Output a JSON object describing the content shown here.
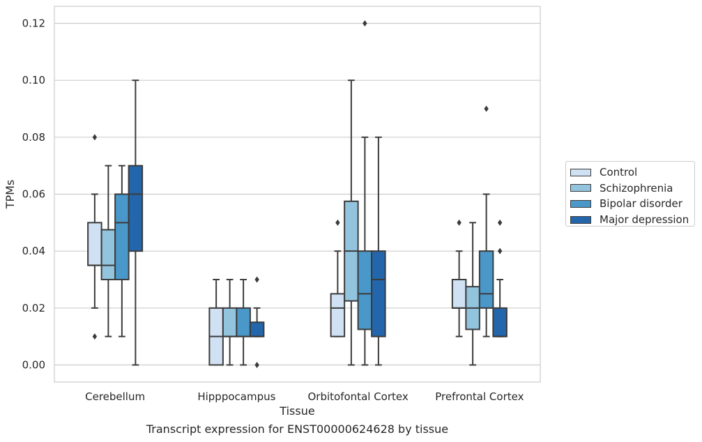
{
  "chart_data": {
    "type": "box",
    "xlabel": "Tissue",
    "ylabel": "TPMs",
    "ylim": [
      -0.006,
      0.126
    ],
    "yticks": [
      "0.00",
      "0.02",
      "0.04",
      "0.06",
      "0.08",
      "0.10",
      "0.12"
    ],
    "grid": "horizontal",
    "legend_position": "right",
    "categories": [
      "Cerebellum",
      "Hipppocampus",
      "Orbitofontal Cortex",
      "Prefrontal Cortex"
    ],
    "series": [
      {
        "name": "Control",
        "color": "#cfe1f2",
        "boxes": [
          {
            "whislo": 0.02,
            "q1": 0.035,
            "med": 0.035,
            "q3": 0.05,
            "whishi": 0.06,
            "fliers": [
              0.08,
              0.01
            ]
          },
          {
            "whislo": 0.0,
            "q1": 0.0,
            "med": 0.01,
            "q3": 0.02,
            "whishi": 0.03,
            "fliers": []
          },
          {
            "whislo": 0.01,
            "q1": 0.01,
            "med": 0.02,
            "q3": 0.025,
            "whishi": 0.04,
            "fliers": [
              0.05
            ]
          },
          {
            "whislo": 0.01,
            "q1": 0.02,
            "med": 0.02,
            "q3": 0.03,
            "whishi": 0.04,
            "fliers": [
              0.05
            ]
          }
        ]
      },
      {
        "name": "Schizophrenia",
        "color": "#93c4de",
        "boxes": [
          {
            "whislo": 0.01,
            "q1": 0.03,
            "med": 0.035,
            "q3": 0.0475,
            "whishi": 0.07,
            "fliers": []
          },
          {
            "whislo": 0.0,
            "q1": 0.01,
            "med": 0.01,
            "q3": 0.02,
            "whishi": 0.03,
            "fliers": []
          },
          {
            "whislo": 0.0,
            "q1": 0.0225,
            "med": 0.04,
            "q3": 0.0575,
            "whishi": 0.1,
            "fliers": []
          },
          {
            "whislo": 0.0,
            "q1": 0.0125,
            "med": 0.02,
            "q3": 0.0275,
            "whishi": 0.05,
            "fliers": []
          }
        ]
      },
      {
        "name": "Bipolar disorder",
        "color": "#4a98c9",
        "boxes": [
          {
            "whislo": 0.01,
            "q1": 0.03,
            "med": 0.05,
            "q3": 0.06,
            "whishi": 0.07,
            "fliers": []
          },
          {
            "whislo": 0.0,
            "q1": 0.01,
            "med": 0.01,
            "q3": 0.02,
            "whishi": 0.03,
            "fliers": []
          },
          {
            "whislo": 0.0,
            "q1": 0.0125,
            "med": 0.025,
            "q3": 0.04,
            "whishi": 0.08,
            "fliers": [
              0.12
            ]
          },
          {
            "whislo": 0.01,
            "q1": 0.02,
            "med": 0.025,
            "q3": 0.04,
            "whishi": 0.06,
            "fliers": [
              0.09
            ]
          }
        ]
      },
      {
        "name": "Major depression",
        "color": "#2466ab",
        "boxes": [
          {
            "whislo": 0.0,
            "q1": 0.04,
            "med": 0.06,
            "q3": 0.07,
            "whishi": 0.1,
            "fliers": []
          },
          {
            "whislo": 0.01,
            "q1": 0.01,
            "med": 0.01,
            "q3": 0.015,
            "whishi": 0.02,
            "fliers": [
              0.03,
              0.0
            ]
          },
          {
            "whislo": 0.0,
            "q1": 0.01,
            "med": 0.03,
            "q3": 0.04,
            "whishi": 0.08,
            "fliers": []
          },
          {
            "whislo": 0.01,
            "q1": 0.01,
            "med": 0.01,
            "q3": 0.02,
            "whishi": 0.03,
            "fliers": [
              0.05,
              0.04
            ]
          }
        ]
      }
    ]
  },
  "caption": "Transcript expression for ENST00000624628 by tissue"
}
